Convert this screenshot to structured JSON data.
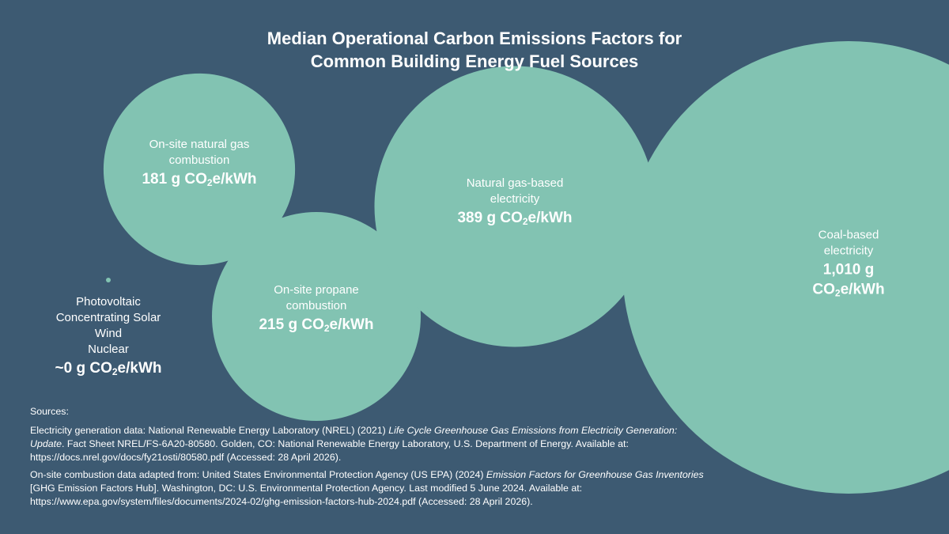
{
  "chart_data": {
    "type": "bubble",
    "title_lines": [
      "Median Operational Carbon Emissions Factors for",
      "Common Building Energy Fuel Sources"
    ],
    "unit_prefix": "g CO",
    "unit_sub": "2",
    "unit_suffix": "e/kWh",
    "bubble_color": "#82c3b2",
    "background_color": "#3d5a72",
    "series": [
      {
        "name": "photovoltaic-etc",
        "label_lines": [
          "Photovoltaic",
          "Concentrating Solar",
          "Wind",
          "Nuclear"
        ],
        "value": 0,
        "value_text": "~0"
      },
      {
        "name": "natural-gas-combustion",
        "label_lines": [
          "On-site natural gas",
          "combustion"
        ],
        "value": 181,
        "value_text": "181"
      },
      {
        "name": "propane-combustion",
        "label_lines": [
          "On-site propane",
          "combustion"
        ],
        "value": 215,
        "value_text": "215"
      },
      {
        "name": "natural-gas-electricity",
        "label_lines": [
          "Natural gas-based",
          "electricity"
        ],
        "value": 389,
        "value_text": "389"
      },
      {
        "name": "coal-electricity",
        "label_lines": [
          "Coal-based",
          "electricity"
        ],
        "value": 1010,
        "value_text": "1,010"
      }
    ]
  },
  "sources": {
    "heading": "Sources:",
    "electricity": {
      "before": "Electricity generation data: National Renewable Energy Laboratory (NREL) (2021) ",
      "italic": "Life Cycle Greenhouse Gas Emissions from Electricity Generation: Update",
      "after": ". Fact Sheet NREL/FS-6A20-80580. Golden, CO: National Renewable Energy Laboratory, U.S. Department of Energy. Available at: https://docs.nrel.gov/docs/fy21osti/80580.pdf (Accessed: 28 April 2026)."
    },
    "combustion": {
      "before": "On-site combustion data adapted from: United States Environmental Protection Agency (US EPA) (2024) ",
      "italic": "Emission Factors for Greenhouse Gas Inventories",
      "after": " [GHG Emission Factors Hub]. Washington, DC: U.S. Environmental Protection Agency. Last modified 5 June 2024. Available at: https://www.epa.gov/system/files/documents/2024-02/ghg-emission-factors-hub-2024.pdf (Accessed: 28 April 2026)."
    }
  }
}
